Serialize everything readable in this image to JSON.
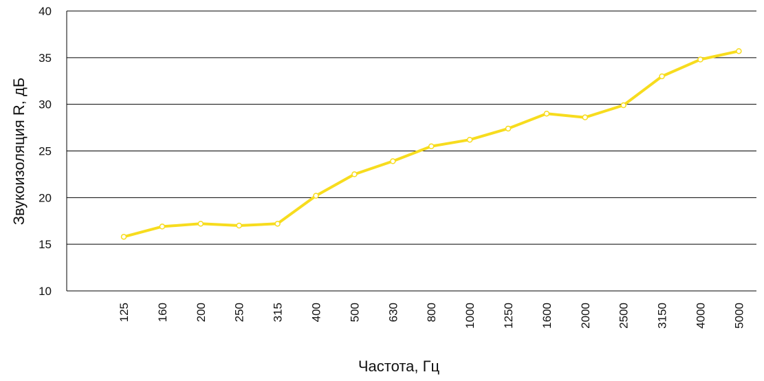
{
  "chart_data": {
    "type": "line",
    "title": "",
    "xlabel": "Частота, Гц",
    "ylabel": "Звукоизоляция R, дБ",
    "categories": [
      "125",
      "160",
      "200",
      "250",
      "315",
      "400",
      "500",
      "630",
      "800",
      "1000",
      "1250",
      "1600",
      "2000",
      "2500",
      "3150",
      "4000",
      "5000"
    ],
    "series": [
      {
        "values": [
          15.8,
          16.9,
          17.2,
          17.0,
          17.2,
          20.2,
          22.5,
          23.9,
          25.5,
          26.2,
          27.4,
          29.0,
          28.6,
          29.9,
          33.0,
          34.8,
          35.7
        ]
      }
    ],
    "yticks": [
      10,
      15,
      20,
      25,
      30,
      35,
      40
    ],
    "ylim": [
      10,
      40
    ],
    "grid": "horizontal",
    "line_color": "#f7dc1e",
    "marker_fill": "#ffffff",
    "gridline_color": "#000000"
  }
}
